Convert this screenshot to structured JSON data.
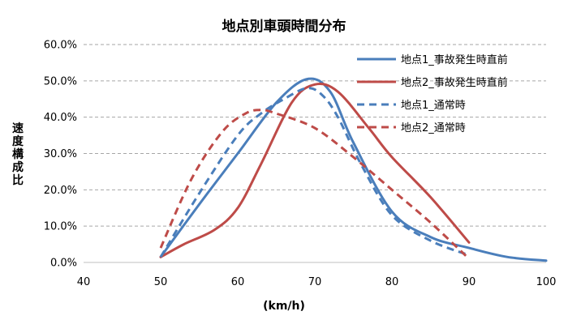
{
  "chart_data": {
    "type": "line",
    "title": "地点別車頭時間分布",
    "xlabel": "(km/h)",
    "ylabel": "速度構成比",
    "xlim": [
      40,
      100
    ],
    "ylim": [
      0,
      0.6
    ],
    "xticks": [
      "40",
      "50",
      "60",
      "70",
      "80",
      "90",
      "100"
    ],
    "yticks": [
      "0.0%",
      "10.0%",
      "20.0%",
      "30.0%",
      "40.0%",
      "50.0%",
      "60.0%"
    ],
    "grid": "horizontal dashed",
    "legend_position": "top-right",
    "series": [
      {
        "name": "地点1_事故発生時直前",
        "color": "#4a7ebb",
        "dash": "solid",
        "x": [
          50,
          55,
          60,
          65,
          69,
          72,
          75,
          80,
          85,
          90,
          95,
          100
        ],
        "y": [
          0.015,
          0.16,
          0.3,
          0.44,
          0.505,
          0.47,
          0.33,
          0.14,
          0.07,
          0.04,
          0.015,
          0.005
        ]
      },
      {
        "name": "地点2_事故発生時直前",
        "color": "#be4b48",
        "dash": "solid",
        "x": [
          50,
          53,
          57,
          60,
          63,
          67,
          70,
          73,
          77,
          80,
          85,
          90
        ],
        "y": [
          0.015,
          0.05,
          0.09,
          0.15,
          0.27,
          0.44,
          0.49,
          0.47,
          0.37,
          0.29,
          0.18,
          0.055
        ]
      },
      {
        "name": "地点1_通常時",
        "color": "#4a7ebb",
        "dash": "dashed",
        "x": [
          50,
          55,
          60,
          63,
          66,
          69,
          71,
          73,
          76,
          80,
          85,
          90
        ],
        "y": [
          0.015,
          0.19,
          0.35,
          0.41,
          0.45,
          0.48,
          0.46,
          0.4,
          0.27,
          0.13,
          0.06,
          0.02
        ]
      },
      {
        "name": "地点2_通常時",
        "color": "#be4b48",
        "dash": "dashed",
        "x": [
          50,
          54,
          58,
          61,
          63,
          65,
          70,
          75,
          80,
          85,
          90
        ],
        "y": [
          0.04,
          0.23,
          0.36,
          0.41,
          0.42,
          0.41,
          0.37,
          0.29,
          0.2,
          0.11,
          0.01
        ]
      }
    ]
  }
}
